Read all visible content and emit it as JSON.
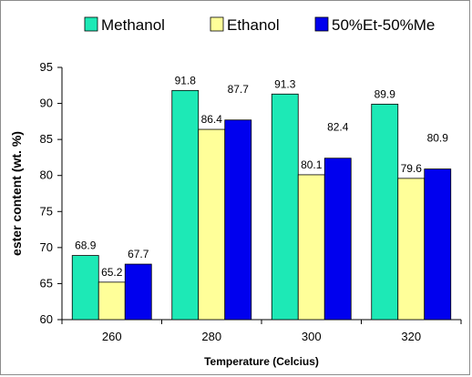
{
  "chart_data": {
    "type": "bar",
    "title": "",
    "xlabel": "Temperature (Celcius)",
    "ylabel": "ester content (wt. %)",
    "categories": [
      "260",
      "280",
      "300",
      "320"
    ],
    "series": [
      {
        "name": "Methanol",
        "values": [
          68.9,
          91.8,
          91.3,
          89.9
        ],
        "color": "#1de9b6"
      },
      {
        "name": "Ethanol",
        "values": [
          65.2,
          86.4,
          80.1,
          79.6
        ],
        "color": "#ffff99"
      },
      {
        "name": "50%Et-50%Me",
        "values": [
          67.7,
          87.7,
          82.4,
          80.9
        ],
        "color": "#0000ee"
      }
    ],
    "data_labels": [
      [
        "68.9",
        "91.8",
        "91.3",
        "89.9"
      ],
      [
        "65.2",
        "86.4",
        "80.1",
        "79.6"
      ],
      [
        "67.7",
        "87.7",
        "82.4",
        "80.9"
      ]
    ],
    "ylim": [
      60,
      95
    ],
    "yticks": [
      "60",
      "65",
      "70",
      "75",
      "80",
      "85",
      "90",
      "95"
    ],
    "grid": false,
    "legend_position": "top"
  }
}
